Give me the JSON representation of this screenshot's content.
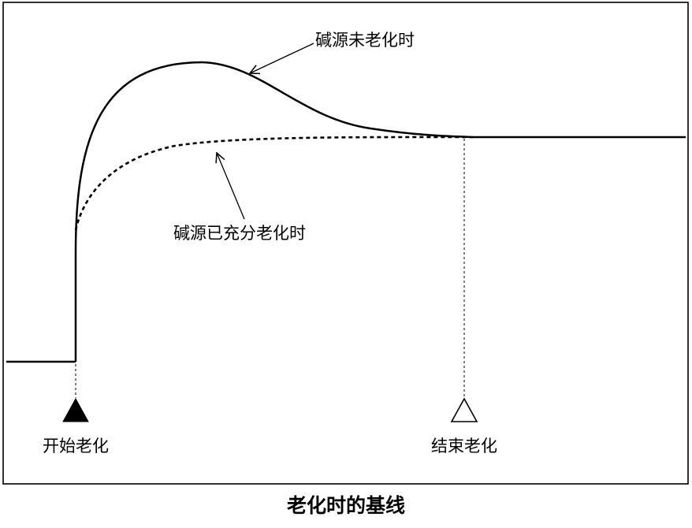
{
  "diagram": {
    "caption": "老化时的基线",
    "annotations": {
      "unaged_source": "碱源未老化时",
      "aged_source": "碱源已充分老化时"
    },
    "markers": {
      "start": {
        "label": "开始老化",
        "symbol": "filled-triangle"
      },
      "end": {
        "label": "结束老化",
        "symbol": "hollow-triangle"
      }
    },
    "curves": [
      {
        "name": "unaged",
        "line_style": "solid",
        "color": "#000000"
      },
      {
        "name": "aged",
        "line_style": "dashed",
        "color": "#000000"
      }
    ]
  }
}
